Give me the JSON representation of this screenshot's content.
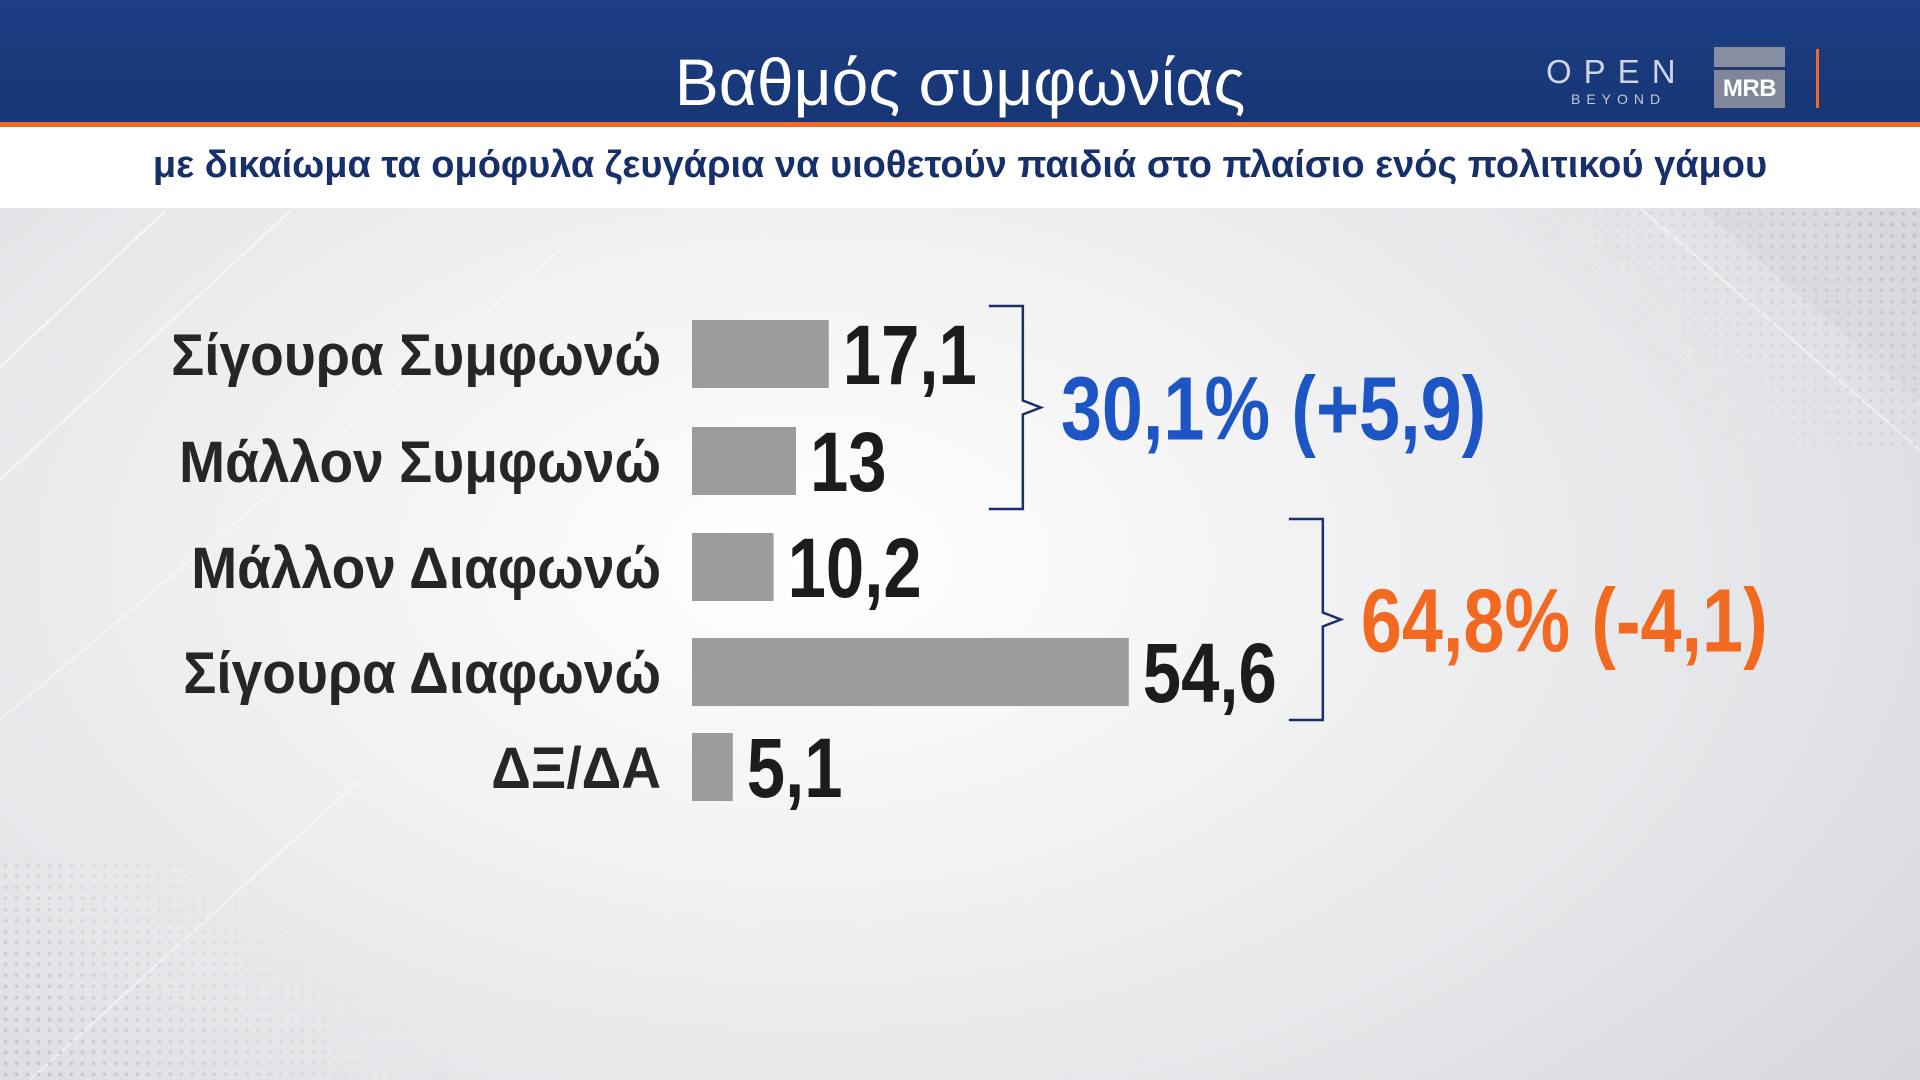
{
  "header": {
    "logo_open": "OPEN",
    "logo_beyond": "BEYOND",
    "logo_mrb": "MRB"
  },
  "colors": {
    "header_bg": "#1b3b7e",
    "accent_orange": "#f26a21",
    "subtitle_text": "#17306b",
    "bar": "#9c9c9c",
    "category_text": "#262626",
    "value_text": "#1c1c1c",
    "bracket": "#1b2f6b",
    "agree_total": "#1e55c5",
    "disagree_total": "#f26a21"
  },
  "chart_data": {
    "type": "bar",
    "orientation": "horizontal",
    "title": "Βαθμός συμφωνίας",
    "subtitle": "με δικαίωμα τα ομόφυλα ζευγάρια να υιοθετούν παιδιά στο πλαίσιο ενός πολιτικού γάμου",
    "categories": [
      "Σίγουρα Συμφωνώ",
      "Μάλλον Συμφωνώ",
      "Μάλλον Διαφωνώ",
      "Σίγουρα Διαφωνώ",
      "ΔΞ/ΔΑ"
    ],
    "values": [
      17.1,
      13,
      10.2,
      54.6,
      5.1
    ],
    "value_labels": [
      "17,1",
      "13",
      "10,2",
      "54,6",
      "5,1"
    ],
    "groups": [
      {
        "members": [
          0,
          1
        ],
        "total_label": "30,1%",
        "change_label": "(+5,9)",
        "color": "#1e55c5"
      },
      {
        "members": [
          2,
          3
        ],
        "total_label": "64,8%",
        "change_label": "(-4,1)",
        "color": "#f26a21"
      }
    ],
    "grid": false,
    "legend": "none"
  }
}
